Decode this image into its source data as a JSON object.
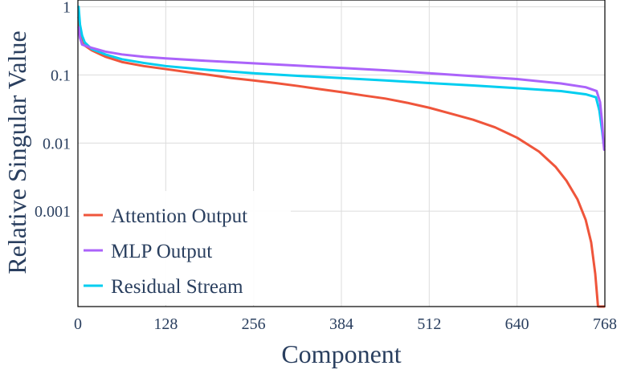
{
  "chart_data": {
    "type": "line",
    "xlabel": "Component",
    "ylabel": "Relative Singular Value",
    "xlim": [
      0,
      768
    ],
    "ylim_log10": [
      -4.4,
      0.1
    ],
    "yscale": "log",
    "grid": true,
    "legend_position": "bottom-left",
    "x_ticks": [
      {
        "value": 0,
        "label": "0"
      },
      {
        "value": 128,
        "label": "128"
      },
      {
        "value": 256,
        "label": "256"
      },
      {
        "value": 384,
        "label": "384"
      },
      {
        "value": 512,
        "label": "512"
      },
      {
        "value": 640,
        "label": "640"
      },
      {
        "value": 768,
        "label": "768"
      }
    ],
    "y_ticks": [
      {
        "value": 1,
        "label": "1"
      },
      {
        "value": 0.1,
        "label": "0.1"
      },
      {
        "value": 0.01,
        "label": "0.01"
      },
      {
        "value": 0.001,
        "label": "0.001"
      }
    ],
    "series": [
      {
        "name": "Attention Output",
        "color": "#ef553b",
        "x": [
          1,
          3,
          6,
          10,
          20,
          40,
          64,
          96,
          128,
          160,
          192,
          224,
          256,
          288,
          320,
          352,
          384,
          416,
          448,
          480,
          512,
          544,
          576,
          608,
          640,
          672,
          696,
          712,
          728,
          740,
          748,
          754,
          758,
          761,
          763,
          765,
          767
        ],
        "y": [
          0.7,
          0.45,
          0.3,
          0.27,
          0.23,
          0.185,
          0.155,
          0.135,
          0.122,
          0.11,
          0.1,
          0.09,
          0.083,
          0.076,
          0.069,
          0.062,
          0.056,
          0.05,
          0.045,
          0.039,
          0.033,
          0.027,
          0.022,
          0.017,
          0.012,
          0.0075,
          0.0045,
          0.0028,
          0.0015,
          0.00075,
          0.00035,
          0.00012,
          4e-05,
          1e-05,
          2.5e-06,
          8e-07,
          6e-07
        ]
      },
      {
        "name": "MLP Output",
        "color": "#ab63fa",
        "x": [
          1,
          3,
          6,
          10,
          20,
          40,
          64,
          96,
          128,
          192,
          256,
          320,
          384,
          448,
          512,
          576,
          640,
          704,
          740,
          756,
          761,
          764,
          766,
          767
        ],
        "y": [
          0.5,
          0.35,
          0.28,
          0.27,
          0.25,
          0.22,
          0.2,
          0.185,
          0.175,
          0.16,
          0.148,
          0.137,
          0.127,
          0.117,
          0.106,
          0.096,
          0.087,
          0.075,
          0.066,
          0.058,
          0.04,
          0.02,
          0.01,
          0.008
        ]
      },
      {
        "name": "Residual Stream",
        "color": "#00cef0",
        "x": [
          1,
          3,
          6,
          10,
          20,
          40,
          64,
          96,
          128,
          192,
          256,
          320,
          384,
          448,
          512,
          576,
          640,
          704,
          740,
          755,
          760,
          764,
          766,
          767
        ],
        "y": [
          1,
          0.55,
          0.38,
          0.3,
          0.24,
          0.2,
          0.17,
          0.15,
          0.135,
          0.118,
          0.106,
          0.097,
          0.09,
          0.083,
          0.076,
          0.07,
          0.064,
          0.058,
          0.052,
          0.047,
          0.03,
          0.015,
          0.01,
          0.009
        ]
      }
    ]
  }
}
